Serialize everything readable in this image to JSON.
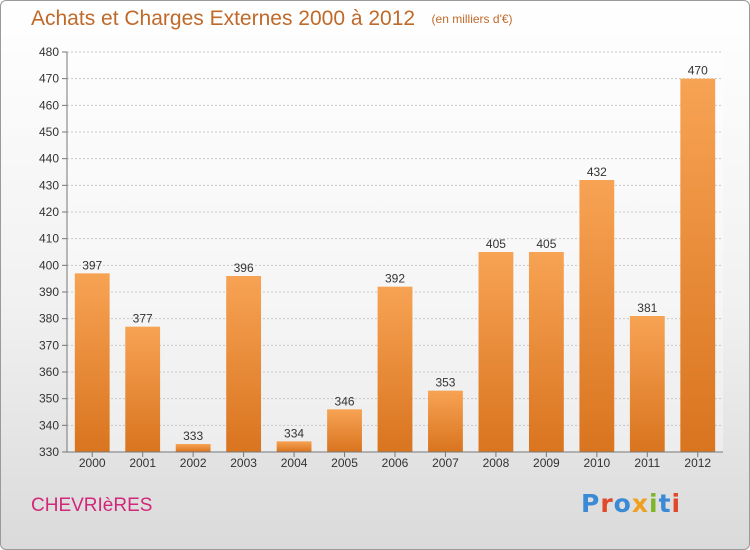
{
  "header": {
    "title": "Achats et Charges Externes 2000 à 2012",
    "unit": "(en milliers d'€)"
  },
  "footer": {
    "place": "CHEVRIèRES",
    "logo_text": "Proxiti"
  },
  "colors": {
    "bar_top": "#f7a354",
    "bar_bottom": "#d9741f",
    "title": "#c06a2a",
    "place": "#d2287a",
    "logo_letters": [
      "#3a8ad6",
      "#e04a2a",
      "#3a8ad6",
      "#f0a020",
      "#7fb52a",
      "#3a8ad6",
      "#e04a2a"
    ]
  },
  "chart_data": {
    "type": "bar",
    "title": "Achats et Charges Externes 2000 à 2012",
    "subtitle": "(en milliers d'€)",
    "categories": [
      "2000",
      "2001",
      "2002",
      "2003",
      "2004",
      "2005",
      "2006",
      "2007",
      "2008",
      "2009",
      "2010",
      "2011",
      "2012"
    ],
    "values": [
      397,
      377,
      333,
      396,
      334,
      346,
      392,
      353,
      405,
      405,
      432,
      381,
      470
    ],
    "ylim": [
      330,
      480
    ],
    "yticks": [
      330,
      340,
      350,
      360,
      370,
      380,
      390,
      400,
      410,
      420,
      430,
      440,
      450,
      460,
      470,
      480
    ],
    "grid": true,
    "data_labels": true
  }
}
